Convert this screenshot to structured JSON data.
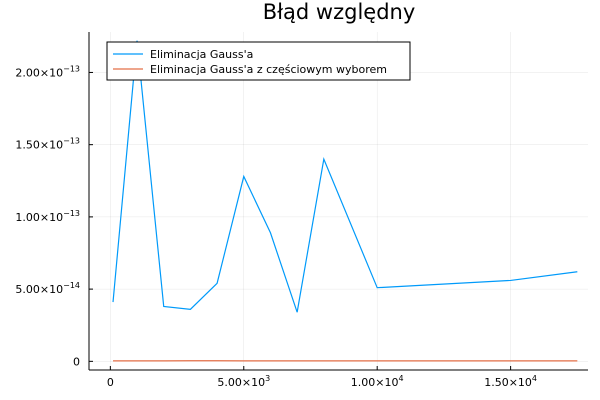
{
  "chart_data": {
    "type": "line",
    "title": "Błąd względny",
    "xlabel": "",
    "ylabel": "",
    "xlim": [
      -800,
      17900
    ],
    "ylim": [
      -6e-15,
      2.28e-13
    ],
    "grid": true,
    "legend_position": "top-left",
    "x_ticks": [
      {
        "value": 0,
        "base": "0",
        "exp": ""
      },
      {
        "value": 5000,
        "base": "5.00×10",
        "exp": "3"
      },
      {
        "value": 10000,
        "base": "1.00×10",
        "exp": "4"
      },
      {
        "value": 15000,
        "base": "1.50×10",
        "exp": "4"
      }
    ],
    "y_ticks": [
      {
        "value": 0,
        "base": "0",
        "exp": ""
      },
      {
        "value": 5e-14,
        "base": "5.00×10",
        "exp": "−14"
      },
      {
        "value": 1e-13,
        "base": "1.00×10",
        "exp": "−13"
      },
      {
        "value": 1.5e-13,
        "base": "1.50×10",
        "exp": "−13"
      },
      {
        "value": 2e-13,
        "base": "2.00×10",
        "exp": "−13"
      }
    ],
    "series": [
      {
        "name": "Eliminacja Gauss'a",
        "color": "#009AFA",
        "x": [
          100,
          1000,
          2000,
          3000,
          4000,
          5000,
          6000,
          7000,
          8000,
          10000,
          15000,
          17500
        ],
        "y": [
          4.1e-14,
          2.22e-13,
          3.8e-14,
          3.6e-14,
          5.4e-14,
          1.28e-13,
          8.9e-14,
          3.4e-14,
          1.4e-13,
          5.1e-14,
          5.6e-14,
          6.2e-14
        ]
      },
      {
        "name": "Eliminacja Gauss'a z częściowym wyborem",
        "color": "#E36F47",
        "x": [
          100,
          1000,
          2000,
          3000,
          4000,
          5000,
          6000,
          7000,
          8000,
          10000,
          15000,
          17500
        ],
        "y": [
          3e-16,
          3e-16,
          3e-16,
          4e-16,
          4e-16,
          3e-16,
          3e-16,
          3e-16,
          3e-16,
          3e-16,
          3e-16,
          3e-16
        ]
      }
    ]
  }
}
